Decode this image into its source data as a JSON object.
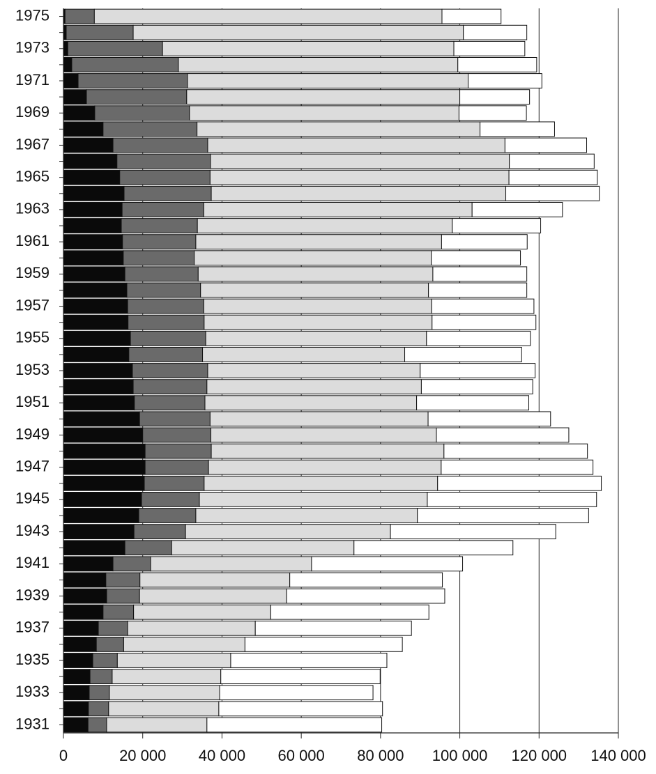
{
  "chart_data": {
    "type": "stacked-barh",
    "categories": [
      "1975",
      null,
      "1973",
      null,
      "1971",
      null,
      "1969",
      null,
      "1967",
      null,
      "1965",
      null,
      "1963",
      null,
      "1961",
      null,
      "1959",
      null,
      "1957",
      null,
      "1955",
      null,
      "1953",
      null,
      "1951",
      null,
      "1949",
      null,
      "1947",
      null,
      "1945",
      null,
      "1943",
      null,
      "1941",
      null,
      "1939",
      null,
      "1937",
      null,
      "1935",
      null,
      "1933",
      null,
      "1931"
    ],
    "series": [
      {
        "color": "#0a0a0a",
        "values": [
          400,
          700,
          1100,
          2100,
          3700,
          5800,
          7900,
          10000,
          12500,
          13500,
          14200,
          15300,
          14800,
          14600,
          14900,
          15100,
          15500,
          16000,
          16200,
          16300,
          16900,
          16500,
          17400,
          17600,
          17900,
          19200,
          20000,
          20600,
          20600,
          20400,
          19700,
          19000,
          17800,
          15500,
          12500,
          10700,
          10900,
          10000,
          8800,
          8300,
          7400,
          6700,
          6500,
          6300,
          6200
        ]
      },
      {
        "color": "#6a6a6a",
        "values": [
          7400,
          16900,
          23900,
          26900,
          27600,
          25300,
          23900,
          23700,
          23900,
          23600,
          22800,
          22000,
          20600,
          19200,
          18500,
          17900,
          18500,
          18600,
          19200,
          19200,
          19000,
          18600,
          19000,
          18600,
          17800,
          17800,
          17200,
          16700,
          16000,
          15100,
          14600,
          14400,
          13000,
          11800,
          9500,
          8600,
          8300,
          7700,
          7400,
          6900,
          6200,
          5600,
          5100,
          5100,
          4700
        ]
      },
      {
        "color": "#dcdcdc",
        "values": [
          87700,
          83300,
          73500,
          70500,
          70800,
          68900,
          68000,
          71400,
          75000,
          75400,
          75400,
          74300,
          67700,
          64300,
          62000,
          59800,
          59200,
          57500,
          57500,
          57500,
          55700,
          51000,
          53600,
          54100,
          53400,
          55000,
          56900,
          58700,
          58700,
          58900,
          57500,
          55900,
          51700,
          46000,
          40600,
          37800,
          37100,
          34600,
          32200,
          30600,
          28600,
          27400,
          27800,
          27800,
          25300
        ]
      },
      {
        "color": "#ffffff",
        "values": [
          14900,
          16000,
          17900,
          19900,
          18600,
          17600,
          17000,
          18800,
          20600,
          21400,
          22300,
          23600,
          22800,
          22300,
          21600,
          22500,
          23700,
          24800,
          25800,
          26200,
          26200,
          29500,
          29000,
          28100,
          28300,
          30900,
          33400,
          36200,
          38300,
          41300,
          42700,
          43200,
          41700,
          40100,
          38100,
          38500,
          39900,
          39900,
          39400,
          39700,
          39400,
          40200,
          38700,
          41300,
          44100
        ]
      }
    ],
    "xlim": [
      0,
      140000
    ],
    "xticks": [
      0,
      {
        "value": 20000,
        "label": "20 000"
      },
      {
        "value": 40000,
        "label": "40 000"
      },
      {
        "value": 60000,
        "label": "60 000"
      },
      {
        "value": 80000,
        "label": "80 000"
      },
      {
        "value": 100000,
        "label": "100 000"
      },
      {
        "value": 120000,
        "label": "120 000"
      },
      {
        "value": 140000,
        "label": "140 000"
      }
    ],
    "grid": true
  }
}
